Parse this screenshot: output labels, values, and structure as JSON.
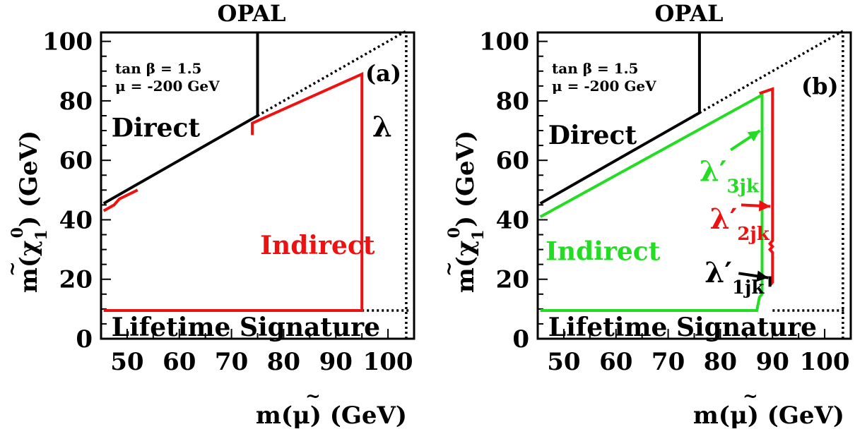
{
  "colors": {
    "black": "#000000",
    "red": "#ee1111",
    "green": "#22dd22"
  },
  "chart_data": [
    {
      "type": "line",
      "title": "OPAL",
      "panel_label": "(a)",
      "xlabel_main": "m(",
      "xlabel_symbol": "μ",
      "xlabel_tilde": "~",
      "xlabel_unit": ") (GeV)",
      "ylabel_main": "m(",
      "ylabel_symbol": "χ",
      "ylabel_tilde": "~",
      "ylabel_sup": "0",
      "ylabel_sub": "1",
      "ylabel_unit": ") (GeV)",
      "xlim": [
        45,
        105
      ],
      "ylim": [
        0,
        103
      ],
      "xticks": [
        "50",
        "60",
        "70",
        "80",
        "90",
        "100"
      ],
      "yticks": [
        "0",
        "20",
        "40",
        "60",
        "80",
        "100"
      ],
      "params": [
        "tan β = 1.5",
        "μ = -200 GeV"
      ],
      "region_labels": [
        {
          "text": "Direct",
          "x": 47,
          "y": 68,
          "color": "#000000"
        },
        {
          "text": "Indirect",
          "x": 75.5,
          "y": 28.5,
          "color": "#ee1111"
        },
        {
          "text": "Lifetime Signature",
          "x": 47,
          "y": 1,
          "color": "#000000"
        }
      ],
      "coupling_labels": [
        {
          "main": "λ",
          "sub": "",
          "x": 97,
          "y": 68,
          "color": "#000000"
        }
      ],
      "series": [
        {
          "color": "#000000",
          "style": "solid",
          "x": [
            45.5,
            75,
            75,
            75
          ],
          "y": [
            45.5,
            75,
            75,
            103
          ]
        },
        {
          "color": "#000000",
          "style": "dotted",
          "x": [
            75,
            103.5
          ],
          "y": [
            75,
            103.5
          ]
        },
        {
          "color": "#000000",
          "style": "dotted",
          "x": [
            95,
            104
          ],
          "y": [
            9.5,
            9.5
          ]
        },
        {
          "color": "#000000",
          "style": "dotted",
          "x": [
            103.5,
            103.5
          ],
          "y": [
            0,
            103
          ]
        },
        {
          "color": "#ee1111",
          "style": "solid",
          "x": [
            45.5,
            47.5,
            48.5,
            52
          ],
          "y": [
            43,
            45,
            47,
            50
          ]
        },
        {
          "color": "#ee1111",
          "style": "solid",
          "x": [
            74,
            74,
            95,
            95,
            95,
            45.5
          ],
          "y": [
            68.5,
            72.5,
            89,
            9.5,
            9.5,
            9.5
          ]
        }
      ]
    },
    {
      "type": "line",
      "title": "OPAL",
      "panel_label": "(b)",
      "xlabel_main": "m(",
      "xlabel_symbol": "μ",
      "xlabel_tilde": "~",
      "xlabel_unit": ") (GeV)",
      "ylabel_main": "m(",
      "ylabel_symbol": "χ",
      "ylabel_tilde": "~",
      "ylabel_sup": "0",
      "ylabel_sub": "1",
      "ylabel_unit": ") (GeV)",
      "xlim": [
        45,
        105
      ],
      "ylim": [
        0,
        103
      ],
      "xticks": [
        "50",
        "60",
        "70",
        "80",
        "90",
        "100"
      ],
      "yticks": [
        "0",
        "20",
        "40",
        "60",
        "80",
        "100"
      ],
      "params": [
        "tan β = 1.5",
        "μ = -200 GeV"
      ],
      "region_labels": [
        {
          "text": "Direct",
          "x": 47,
          "y": 65.5,
          "color": "#000000"
        },
        {
          "text": "Indirect",
          "x": 46.5,
          "y": 26.5,
          "color": "#22dd22"
        },
        {
          "text": "Lifetime Signature",
          "x": 47,
          "y": 1,
          "color": "#000000"
        }
      ],
      "coupling_labels": [
        {
          "main": "λ′",
          "sub": "3jk",
          "x": 76,
          "y": 53,
          "color": "#22dd22"
        },
        {
          "main": "λ′",
          "sub": "2jk",
          "x": 78,
          "y": 37,
          "color": "#ee1111"
        },
        {
          "main": "λ′",
          "sub": "1jk",
          "x": 77,
          "y": 19,
          "color": "#000000"
        }
      ],
      "series": [
        {
          "color": "#000000",
          "style": "solid",
          "x": [
            45.5,
            76,
            76
          ],
          "y": [
            45.5,
            76,
            103
          ]
        },
        {
          "color": "#000000",
          "style": "dotted",
          "x": [
            76,
            103.5
          ],
          "y": [
            76,
            103.5
          ]
        },
        {
          "color": "#000000",
          "style": "dotted",
          "x": [
            90,
            104
          ],
          "y": [
            9.5,
            9.5
          ]
        },
        {
          "color": "#000000",
          "style": "dotted",
          "x": [
            103.5,
            103.5
          ],
          "y": [
            0,
            103
          ]
        },
        {
          "color": "#22dd22",
          "style": "solid",
          "x": [
            45.5,
            88,
            88,
            87.5,
            87,
            45.5
          ],
          "y": [
            41,
            82,
            15,
            14,
            9.5,
            9.5
          ]
        },
        {
          "color": "#ee1111",
          "style": "solid",
          "x": [
            87.5,
            90,
            90,
            89.5,
            90,
            89.5,
            90,
            90,
            89.5
          ],
          "y": [
            82.5,
            84,
            33,
            32,
            31,
            30,
            29,
            19,
            18
          ]
        },
        {
          "color": "#000000",
          "style": "solid",
          "x": [
            89.5,
            89.5
          ],
          "y": [
            17.5,
            21
          ]
        }
      ],
      "arrows": [
        {
          "color": "#22dd22",
          "x": [
            82,
            87.6
          ],
          "y": [
            63.5,
            70
          ]
        },
        {
          "color": "#ee1111",
          "x": [
            84,
            89.6
          ],
          "y": [
            45,
            44.5
          ]
        },
        {
          "color": "#000000",
          "x": [
            83.5,
            89.2
          ],
          "y": [
            22,
            20.5
          ]
        }
      ]
    }
  ]
}
